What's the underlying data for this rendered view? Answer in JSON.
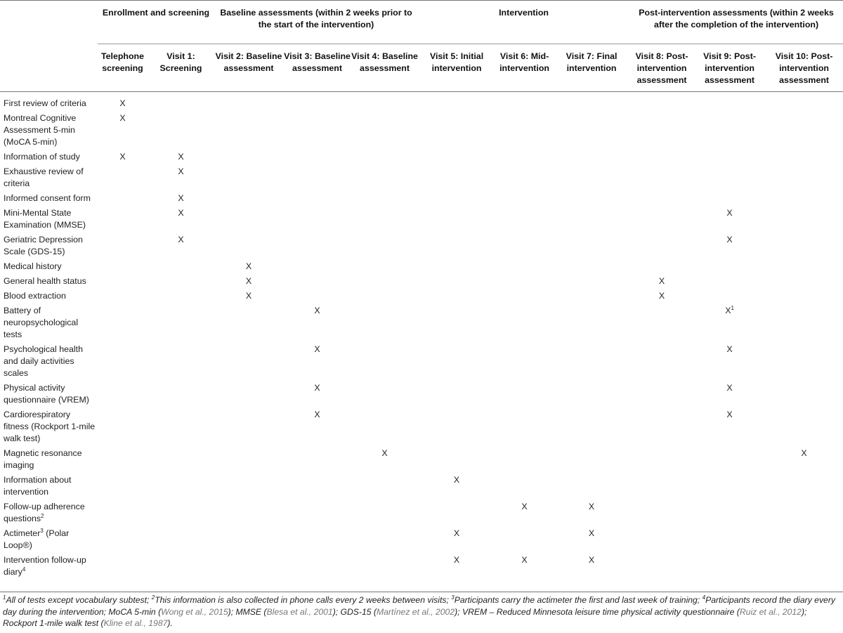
{
  "groups": [
    "Enrollment and screening",
    "Baseline assessments (within 2 weeks prior to the start of the intervention)",
    "Intervention",
    "Post-intervention assessments (within 2 weeks after the completion of the intervention)"
  ],
  "visits": [
    "Telephone screening",
    "Visit 1: Screening",
    "Visit 2: Baseline assessment",
    "Visit 3: Baseline assessment",
    "Visit 4: Baseline assessment",
    "Visit 5: Initial intervention",
    "Visit 6: Mid-intervention",
    "Visit 7: Final intervention",
    "Visit 8: Post-intervention assessment",
    "Visit 9: Post-intervention assessment",
    "Visit 10: Post-intervention assessment"
  ],
  "rows": [
    {
      "label": "First review of criteria",
      "marks": [
        "X",
        "",
        "",
        "",
        "",
        "",
        "",
        "",
        "",
        "",
        ""
      ]
    },
    {
      "label": "Montreal Cognitive Assessment 5-min (MoCA 5-min)",
      "marks": [
        "X",
        "",
        "",
        "",
        "",
        "",
        "",
        "",
        "",
        "",
        ""
      ]
    },
    {
      "label": "Information of study",
      "marks": [
        "X",
        "X",
        "",
        "",
        "",
        "",
        "",
        "",
        "",
        "",
        ""
      ]
    },
    {
      "label": "Exhaustive review of criteria",
      "marks": [
        "",
        "X",
        "",
        "",
        "",
        "",
        "",
        "",
        "",
        "",
        ""
      ]
    },
    {
      "label": "Informed consent form",
      "marks": [
        "",
        "X",
        "",
        "",
        "",
        "",
        "",
        "",
        "",
        "",
        ""
      ]
    },
    {
      "label": "Mini-Mental State Examination (MMSE)",
      "marks": [
        "",
        "X",
        "",
        "",
        "",
        "",
        "",
        "",
        "",
        "X",
        ""
      ]
    },
    {
      "label": "Geriatric Depression Scale (GDS-15)",
      "marks": [
        "",
        "X",
        "",
        "",
        "",
        "",
        "",
        "",
        "",
        "X",
        ""
      ]
    },
    {
      "label": "Medical history",
      "marks": [
        "",
        "",
        "X",
        "",
        "",
        "",
        "",
        "",
        "",
        "",
        ""
      ]
    },
    {
      "label": "General health status",
      "marks": [
        "",
        "",
        "X",
        "",
        "",
        "",
        "",
        "",
        "X",
        "",
        ""
      ]
    },
    {
      "label": "Blood extraction",
      "marks": [
        "",
        "",
        "X",
        "",
        "",
        "",
        "",
        "",
        "X",
        "",
        ""
      ]
    },
    {
      "label": "Battery of neuropsychological tests",
      "marks": [
        "",
        "",
        "",
        "X",
        "",
        "",
        "",
        "",
        "",
        "X",
        ""
      ],
      "mark_sup": {
        "9": "1"
      }
    },
    {
      "label": "Psychological health and daily activities scales",
      "marks": [
        "",
        "",
        "",
        "X",
        "",
        "",
        "",
        "",
        "",
        "X",
        ""
      ]
    },
    {
      "label": "Physical activity questionnaire (VREM)",
      "marks": [
        "",
        "",
        "",
        "X",
        "",
        "",
        "",
        "",
        "",
        "X",
        ""
      ]
    },
    {
      "label": "Cardiorespiratory fitness (Rockport 1-mile walk test)",
      "marks": [
        "",
        "",
        "",
        "X",
        "",
        "",
        "",
        "",
        "",
        "X",
        ""
      ]
    },
    {
      "label": "Magnetic resonance imaging",
      "marks": [
        "",
        "",
        "",
        "",
        "X",
        "",
        "",
        "",
        "",
        "",
        "X"
      ]
    },
    {
      "label": "Information about intervention",
      "marks": [
        "",
        "",
        "",
        "",
        "",
        "X",
        "",
        "",
        "",
        "",
        ""
      ]
    },
    {
      "label": "Follow-up adherence questions",
      "label_sup": "2",
      "marks": [
        "",
        "",
        "",
        "",
        "",
        "",
        "X",
        "X",
        "",
        "",
        ""
      ]
    },
    {
      "label": "Actimeter",
      "label_sup": "3",
      "label_rest": " (Polar Loop®)",
      "marks": [
        "",
        "",
        "",
        "",
        "",
        "X",
        "",
        "X",
        "",
        "",
        ""
      ]
    },
    {
      "label": "Intervention follow-up diary",
      "label_sup": "4",
      "marks": [
        "",
        "",
        "",
        "",
        "",
        "X",
        "X",
        "X",
        "",
        "",
        ""
      ]
    }
  ],
  "footnote": {
    "parts": [
      {
        "sup": "1",
        "text": "All of tests except vocabulary subtest; "
      },
      {
        "sup": "2",
        "text": "This information is also collected in phone calls every 2 weeks between visits; "
      },
      {
        "sup": "3",
        "text": "Participants carry the actimeter the first and last week of training; "
      },
      {
        "sup": "4",
        "text": "Participants record the diary every day during the intervention; MoCA 5-min ("
      },
      {
        "ref": "Wong et al., 2015"
      },
      {
        "text": "); MMSE ("
      },
      {
        "ref": "Blesa et al., 2001"
      },
      {
        "text": "); GDS-15 ("
      },
      {
        "ref": "Martínez et al., 2002"
      },
      {
        "text": "); VREM – Reduced Minnesota leisure time physical activity questionnaire ("
      },
      {
        "ref": "Ruiz et al., 2012"
      },
      {
        "text": "); Rockport 1-mile walk test ("
      },
      {
        "ref": "Kline et al., 1987"
      },
      {
        "text": ")."
      }
    ]
  }
}
